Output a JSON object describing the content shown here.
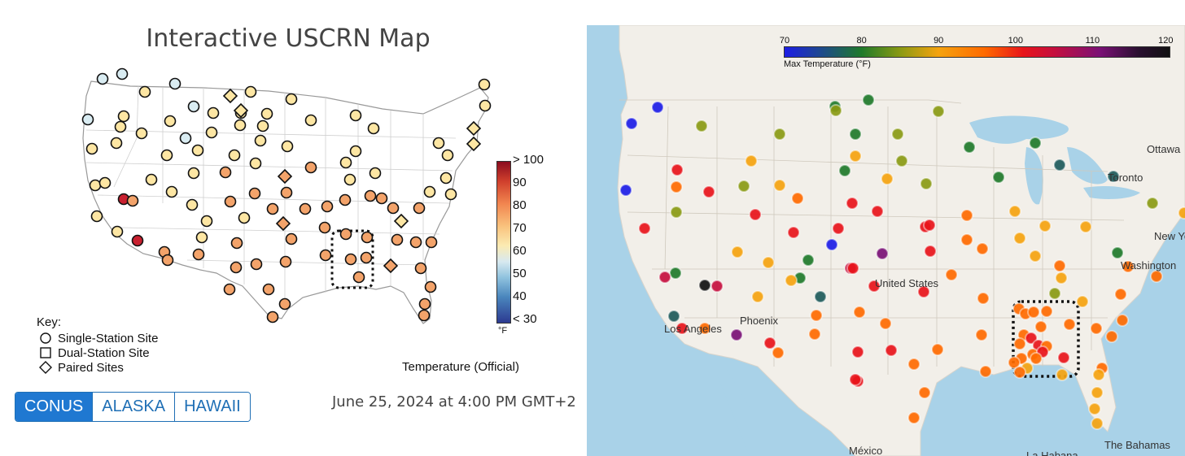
{
  "left_panel": {
    "title": "Interactive USCRN Map",
    "key_title": "Key:",
    "key_items": [
      "Single-Station Site",
      "Dual-Station Site",
      "Paired Sites"
    ],
    "colorbar_labels": [
      "> 100",
      "90",
      "80",
      "70",
      "60",
      "50",
      "40",
      "< 30"
    ],
    "colorbar_unit": "°F",
    "legend_caption": "Temperature (Official)",
    "buttons": [
      "CONUS",
      "ALASKA",
      "HAWAII"
    ],
    "active_button": "CONUS",
    "timestamp": "June 25, 2024 at 4:00 PM GMT+2",
    "colors": {
      "hot": "#c8202f",
      "warm": "#f3a36a",
      "mild": "#fde6a3",
      "cool": "#d9ecf2",
      "active_button": "#1f78d1"
    }
  },
  "right_panel": {
    "colorbar_ticks": [
      "70",
      "80",
      "90",
      "100",
      "110",
      "120"
    ],
    "colorbar_label": "Max Temperature (°F)",
    "map_labels": {
      "ottawa": "Ottawa",
      "toronto": "Toronto",
      "new_york": "New York",
      "washington": "Washington",
      "united_states": "United States",
      "phoenix": "Phoenix",
      "los_angeles": "Los Angeles",
      "mexico": "México",
      "la_habana": "La Habana",
      "bahamas": "The Bahamas"
    },
    "colors": {
      "water": "#a9d2e8",
      "land": "#f2efe9",
      "highlight_box": "#111111"
    }
  }
}
